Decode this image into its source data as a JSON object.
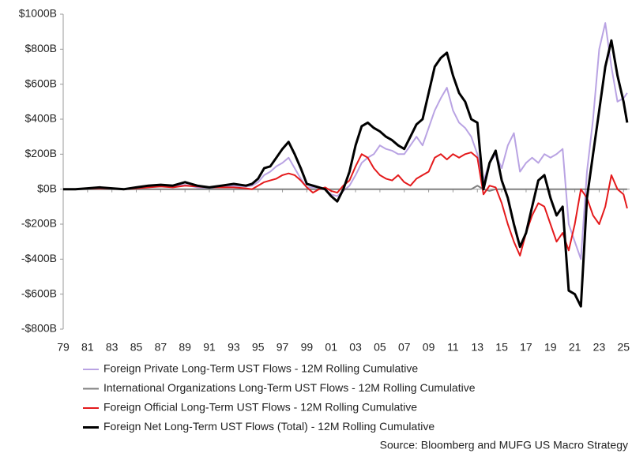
{
  "chart_data": {
    "type": "line",
    "source": "Source: Bloomberg and MUFG US Macro Strategy",
    "x": [
      1979,
      1980,
      1981,
      1982,
      1983,
      1984,
      1985,
      1986,
      1987,
      1988,
      1989,
      1990,
      1991,
      1992,
      1993,
      1994,
      1994.5,
      1995,
      1995.5,
      1996,
      1996.5,
      1997,
      1997.5,
      1998,
      1998.5,
      1999,
      1999.5,
      2000,
      2000.5,
      2001,
      2001.5,
      2002,
      2002.5,
      2003,
      2003.5,
      2004,
      2004.5,
      2005,
      2005.5,
      2006,
      2006.5,
      2007,
      2007.5,
      2008,
      2008.5,
      2009,
      2009.5,
      2010,
      2010.5,
      2011,
      2011.5,
      2012,
      2012.5,
      2013,
      2013.5,
      2014,
      2014.5,
      2015,
      2015.5,
      2016,
      2016.5,
      2017,
      2017.5,
      2018,
      2018.5,
      2019,
      2019.5,
      2020,
      2020.5,
      2021,
      2021.5,
      2022,
      2022.5,
      2023,
      2023.5,
      2024,
      2024.5,
      2025,
      2025.3
    ],
    "series": [
      {
        "name": "Foreign Private Long-Term UST Flows - 12M Rolling Cumulative",
        "color": "#b9a3e3",
        "width": 2,
        "values": [
          0,
          0,
          3,
          8,
          5,
          0,
          8,
          15,
          20,
          15,
          25,
          10,
          5,
          15,
          20,
          15,
          20,
          40,
          80,
          100,
          130,
          150,
          180,
          120,
          60,
          10,
          10,
          10,
          0,
          -30,
          -40,
          -10,
          20,
          80,
          150,
          180,
          200,
          250,
          230,
          220,
          200,
          200,
          250,
          300,
          250,
          350,
          450,
          520,
          580,
          450,
          380,
          350,
          300,
          200,
          50,
          150,
          200,
          120,
          250,
          320,
          100,
          150,
          180,
          150,
          200,
          180,
          200,
          230,
          -200,
          -300,
          -400,
          100,
          400,
          800,
          950,
          700,
          500,
          520,
          550
        ]
      },
      {
        "name": "International Organizations Long-Term UST Flows - 12M Rolling Cumulative",
        "color": "#808080",
        "width": 2,
        "values": [
          0,
          0,
          0,
          0,
          0,
          0,
          0,
          0,
          0,
          0,
          0,
          0,
          0,
          0,
          0,
          0,
          0,
          0,
          0,
          0,
          0,
          0,
          0,
          0,
          0,
          0,
          0,
          0,
          0,
          0,
          0,
          0,
          0,
          0,
          0,
          0,
          0,
          0,
          0,
          0,
          0,
          0,
          0,
          0,
          0,
          0,
          0,
          0,
          0,
          0,
          0,
          0,
          0,
          20,
          0,
          -10,
          0,
          0,
          0,
          0,
          0,
          0,
          0,
          0,
          0,
          0,
          0,
          0,
          0,
          0,
          0,
          0,
          0,
          0,
          0,
          0,
          0,
          0,
          0
        ]
      },
      {
        "name": "Foreign Official Long-Term UST Flows - 12M Rolling Cumulative",
        "color": "#e41a1c",
        "width": 2,
        "values": [
          0,
          0,
          3,
          5,
          3,
          0,
          5,
          10,
          15,
          10,
          20,
          15,
          10,
          10,
          10,
          5,
          0,
          20,
          40,
          50,
          60,
          80,
          90,
          80,
          50,
          10,
          -20,
          0,
          10,
          -10,
          -20,
          20,
          50,
          130,
          200,
          180,
          120,
          80,
          60,
          50,
          80,
          40,
          20,
          60,
          80,
          100,
          180,
          200,
          170,
          200,
          180,
          200,
          210,
          180,
          -30,
          20,
          10,
          -80,
          -200,
          -300,
          -380,
          -250,
          -150,
          -80,
          -100,
          -200,
          -300,
          -250,
          -350,
          -200,
          0,
          -50,
          -150,
          -200,
          -100,
          80,
          0,
          -30,
          -110
        ]
      },
      {
        "name": "Foreign Net Long-Term UST Flows (Total) - 12M Rolling Cumulative",
        "color": "#000000",
        "width": 3,
        "values": [
          0,
          0,
          5,
          10,
          5,
          0,
          10,
          20,
          25,
          20,
          40,
          20,
          10,
          20,
          30,
          20,
          30,
          60,
          120,
          130,
          180,
          230,
          270,
          200,
          120,
          30,
          20,
          10,
          0,
          -40,
          -70,
          0,
          100,
          250,
          360,
          380,
          350,
          330,
          300,
          280,
          250,
          230,
          300,
          370,
          400,
          550,
          700,
          750,
          780,
          650,
          550,
          500,
          400,
          380,
          0,
          150,
          220,
          50,
          -50,
          -200,
          -330,
          -250,
          -100,
          50,
          80,
          -50,
          -150,
          -100,
          -580,
          -600,
          -670,
          -50,
          200,
          450,
          700,
          850,
          650,
          500,
          380
        ]
      }
    ],
    "xlim": [
      1979,
      2025.5
    ],
    "xticks": [
      {
        "value": 1979,
        "label": "79"
      },
      {
        "value": 1981,
        "label": "81"
      },
      {
        "value": 1983,
        "label": "83"
      },
      {
        "value": 1985,
        "label": "85"
      },
      {
        "value": 1987,
        "label": "87"
      },
      {
        "value": 1989,
        "label": "89"
      },
      {
        "value": 1991,
        "label": "91"
      },
      {
        "value": 1993,
        "label": "93"
      },
      {
        "value": 1995,
        "label": "95"
      },
      {
        "value": 1997,
        "label": "97"
      },
      {
        "value": 1999,
        "label": "99"
      },
      {
        "value": 2001,
        "label": "01"
      },
      {
        "value": 2003,
        "label": "03"
      },
      {
        "value": 2005,
        "label": "05"
      },
      {
        "value": 2007,
        "label": "07"
      },
      {
        "value": 2009,
        "label": "09"
      },
      {
        "value": 2011,
        "label": "11"
      },
      {
        "value": 2013,
        "label": "13"
      },
      {
        "value": 2015,
        "label": "15"
      },
      {
        "value": 2017,
        "label": "17"
      },
      {
        "value": 2019,
        "label": "19"
      },
      {
        "value": 2021,
        "label": "21"
      },
      {
        "value": 2023,
        "label": "23"
      },
      {
        "value": 2025,
        "label": "25"
      }
    ],
    "ylim": [
      -800,
      1000
    ],
    "yticks": [
      {
        "value": -800,
        "label": "-$800B"
      },
      {
        "value": -600,
        "label": "-$600B"
      },
      {
        "value": -400,
        "label": "-$400B"
      },
      {
        "value": -200,
        "label": "-$200B"
      },
      {
        "value": 0,
        "label": "$0B"
      },
      {
        "value": 200,
        "label": "$200B"
      },
      {
        "value": 400,
        "label": "$400B"
      },
      {
        "value": 600,
        "label": "$600B"
      },
      {
        "value": 800,
        "label": "$800B"
      },
      {
        "value": 1000,
        "label": "$1000B"
      }
    ],
    "grid": false
  }
}
